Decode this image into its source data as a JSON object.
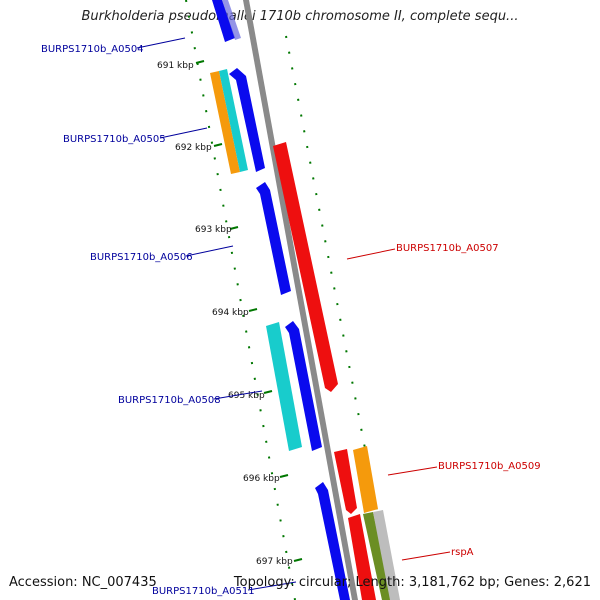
{
  "title": "Burkholderia pseudomallei 1710b chromosome II, complete sequ...",
  "accession": "Accession: NC_007435",
  "topology": "Topology: circular; Length: 3,181,762 bp; Genes: 2,621",
  "colors": {
    "blue": "#0a0aee",
    "red": "#ee0f0f",
    "cyan": "#18cccc",
    "orange": "#f59a0c",
    "olive": "#6b8e23",
    "gray": "#8a8a8a",
    "forward_label": "#00009c",
    "reverse_label": "#cc0000",
    "tick": "#007700"
  },
  "ticks": [
    {
      "label": "691 kbp"
    },
    {
      "label": "692 kbp"
    },
    {
      "label": "693 kbp"
    },
    {
      "label": "694 kbp"
    },
    {
      "label": "695 kbp"
    },
    {
      "label": "696 kbp"
    },
    {
      "label": "697 kbp"
    }
  ],
  "gene_labels": [
    {
      "text": "BURPS1710b_A0504",
      "strand": "forward"
    },
    {
      "text": "BURPS1710b_A0505",
      "strand": "forward"
    },
    {
      "text": "BURPS1710b_A0506",
      "strand": "forward"
    },
    {
      "text": "BURPS1710b_A0508",
      "strand": "forward"
    },
    {
      "text": "BURPS1710b_A0511",
      "strand": "forward"
    },
    {
      "text": "BURPS1710b_A0507",
      "strand": "reverse"
    },
    {
      "text": "BURPS1710b_A0509",
      "strand": "reverse"
    },
    {
      "text": "rspA",
      "strand": "reverse"
    }
  ]
}
